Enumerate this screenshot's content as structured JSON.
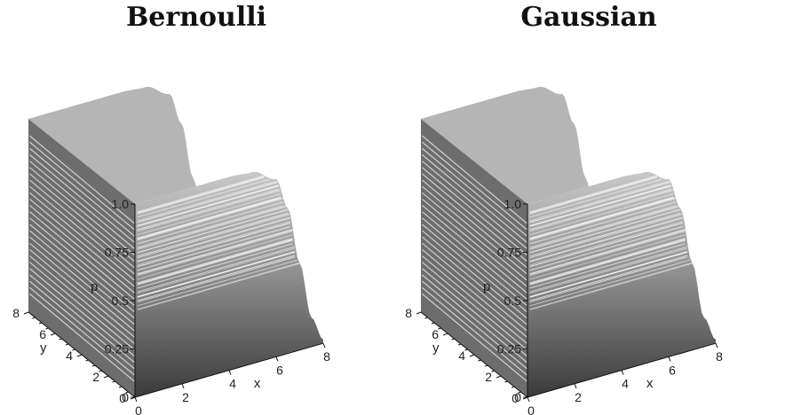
{
  "chart_data": [
    {
      "type": "surface",
      "title": "Bernoulli",
      "xlabel": "x",
      "ylabel": "y",
      "zlabel": "p",
      "xlim": [
        0,
        8
      ],
      "ylim": [
        0,
        8
      ],
      "zlim": [
        0,
        1
      ],
      "x_ticks": [
        "0",
        "2",
        "4",
        "6",
        "8"
      ],
      "y_ticks": [
        "0",
        "2",
        "4",
        "6",
        "8"
      ],
      "z_ticks": [
        "0",
        "0.25",
        "0.5",
        "0.75",
        "1.0"
      ],
      "grid": false,
      "series": [
        {
          "x": [
            0,
            1,
            2,
            3,
            4,
            5,
            6,
            6.5,
            7,
            7.5,
            8
          ],
          "values": [
            1.0,
            1.0,
            1.0,
            1.0,
            1.0,
            0.99,
            0.92,
            0.75,
            0.45,
            0.15,
            0.02
          ]
        }
      ]
    },
    {
      "type": "surface",
      "title": "Gaussian",
      "xlabel": "x",
      "ylabel": "y",
      "zlabel": "p",
      "xlim": [
        0,
        8
      ],
      "ylim": [
        0,
        8
      ],
      "zlim": [
        0,
        1
      ],
      "x_ticks": [
        "0",
        "2",
        "4",
        "6",
        "8"
      ],
      "y_ticks": [
        "0",
        "2",
        "4",
        "6",
        "8"
      ],
      "z_ticks": [
        "0",
        "0.25",
        "0.5",
        "0.75",
        "1.0"
      ],
      "grid": false,
      "series": [
        {
          "x": [
            0,
            1,
            2,
            3,
            4,
            5,
            6,
            6.5,
            7,
            7.5,
            8
          ],
          "values": [
            1.0,
            1.0,
            1.0,
            1.0,
            1.0,
            0.99,
            0.92,
            0.75,
            0.45,
            0.15,
            0.02
          ]
        }
      ]
    }
  ]
}
